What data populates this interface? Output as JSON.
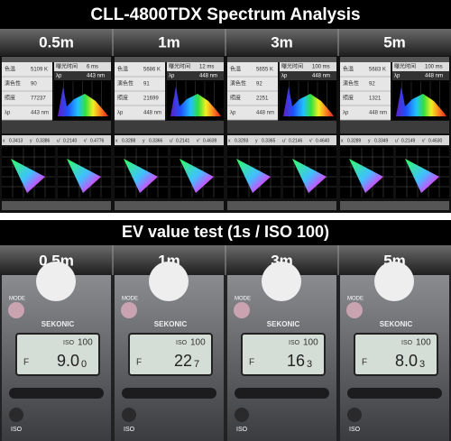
{
  "header": {
    "title": "CLL-4800TDX Spectrum Analysis"
  },
  "spectrum": {
    "distances": [
      "0.5m",
      "1m",
      "3m",
      "5m"
    ],
    "panels": [
      {
        "readings": [
          {
            "label": "色温",
            "value": "5109 K"
          },
          {
            "label": "演色性",
            "value": "90"
          },
          {
            "label": "照度",
            "value": "77237"
          },
          {
            "label": "λp",
            "value": "443 nm"
          }
        ],
        "exposure": {
          "label": "曝光时间",
          "value": "6 ms"
        },
        "peak": {
          "label": "λp",
          "value": "443 nm"
        },
        "xy": [
          {
            "label": "x",
            "value": "0.3413"
          },
          {
            "label": "y",
            "value": "0.3386"
          },
          {
            "label": "u'",
            "value": "0.2140"
          },
          {
            "label": "v'",
            "value": "0.4776"
          }
        ]
      },
      {
        "readings": [
          {
            "label": "色温",
            "value": "5686 K"
          },
          {
            "label": "演色性",
            "value": "91"
          },
          {
            "label": "照度",
            "value": "21699"
          },
          {
            "label": "λp",
            "value": "448 nm"
          }
        ],
        "exposure": {
          "label": "曝光时间",
          "value": "12 ms"
        },
        "peak": {
          "label": "λp",
          "value": "448 nm"
        },
        "xy": [
          {
            "label": "x",
            "value": "0.3288"
          },
          {
            "label": "y",
            "value": "0.3366"
          },
          {
            "label": "u'",
            "value": "0.2141"
          },
          {
            "label": "v'",
            "value": "0.4639"
          }
        ]
      },
      {
        "readings": [
          {
            "label": "色温",
            "value": "5655 K"
          },
          {
            "label": "演色性",
            "value": "92"
          },
          {
            "label": "照度",
            "value": "2251"
          },
          {
            "label": "λp",
            "value": "448 nm"
          }
        ],
        "exposure": {
          "label": "曝光时间",
          "value": "100 ms"
        },
        "peak": {
          "label": "λp",
          "value": "448 nm"
        },
        "xy": [
          {
            "label": "x",
            "value": "0.3293"
          },
          {
            "label": "y",
            "value": "0.3365"
          },
          {
            "label": "u'",
            "value": "0.2146"
          },
          {
            "label": "v'",
            "value": "0.4640"
          }
        ]
      },
      {
        "readings": [
          {
            "label": "色温",
            "value": "5683 K"
          },
          {
            "label": "演色性",
            "value": "92"
          },
          {
            "label": "照度",
            "value": "1321"
          },
          {
            "label": "λp",
            "value": "448 nm"
          }
        ],
        "exposure": {
          "label": "曝光时间",
          "value": "100 ms"
        },
        "peak": {
          "label": "λp",
          "value": "448 nm"
        },
        "xy": [
          {
            "label": "x",
            "value": "0.3289"
          },
          {
            "label": "y",
            "value": "0.3349"
          },
          {
            "label": "u'",
            "value": "0.2149"
          },
          {
            "label": "v'",
            "value": "0.4630"
          }
        ]
      }
    ]
  },
  "ev_test": {
    "title": "EV value test (1s / ISO 100)",
    "distances": [
      "0.5m",
      "1m",
      "3m",
      "5m"
    ],
    "meters": [
      {
        "mode": "MODE",
        "brand": "SEKONIC",
        "iso_label": "ISO",
        "iso": "100",
        "f_label": "F",
        "reading": "9.0",
        "fraction": "0",
        "iso_button": "ISO"
      },
      {
        "mode": "MODE",
        "brand": "SEKONIC",
        "iso_label": "ISO",
        "iso": "100",
        "f_label": "F",
        "reading": "22",
        "fraction": "7",
        "iso_button": "ISO"
      },
      {
        "mode": "MODE",
        "brand": "SEKONIC",
        "iso_label": "ISO",
        "iso": "100",
        "f_label": "F",
        "reading": "16",
        "fraction": "3",
        "iso_button": "ISO"
      },
      {
        "mode": "MODE",
        "brand": "SEKONIC",
        "iso_label": "ISO",
        "iso": "100",
        "f_label": "F",
        "reading": "8.0",
        "fraction": "3",
        "iso_button": "ISO"
      }
    ]
  }
}
